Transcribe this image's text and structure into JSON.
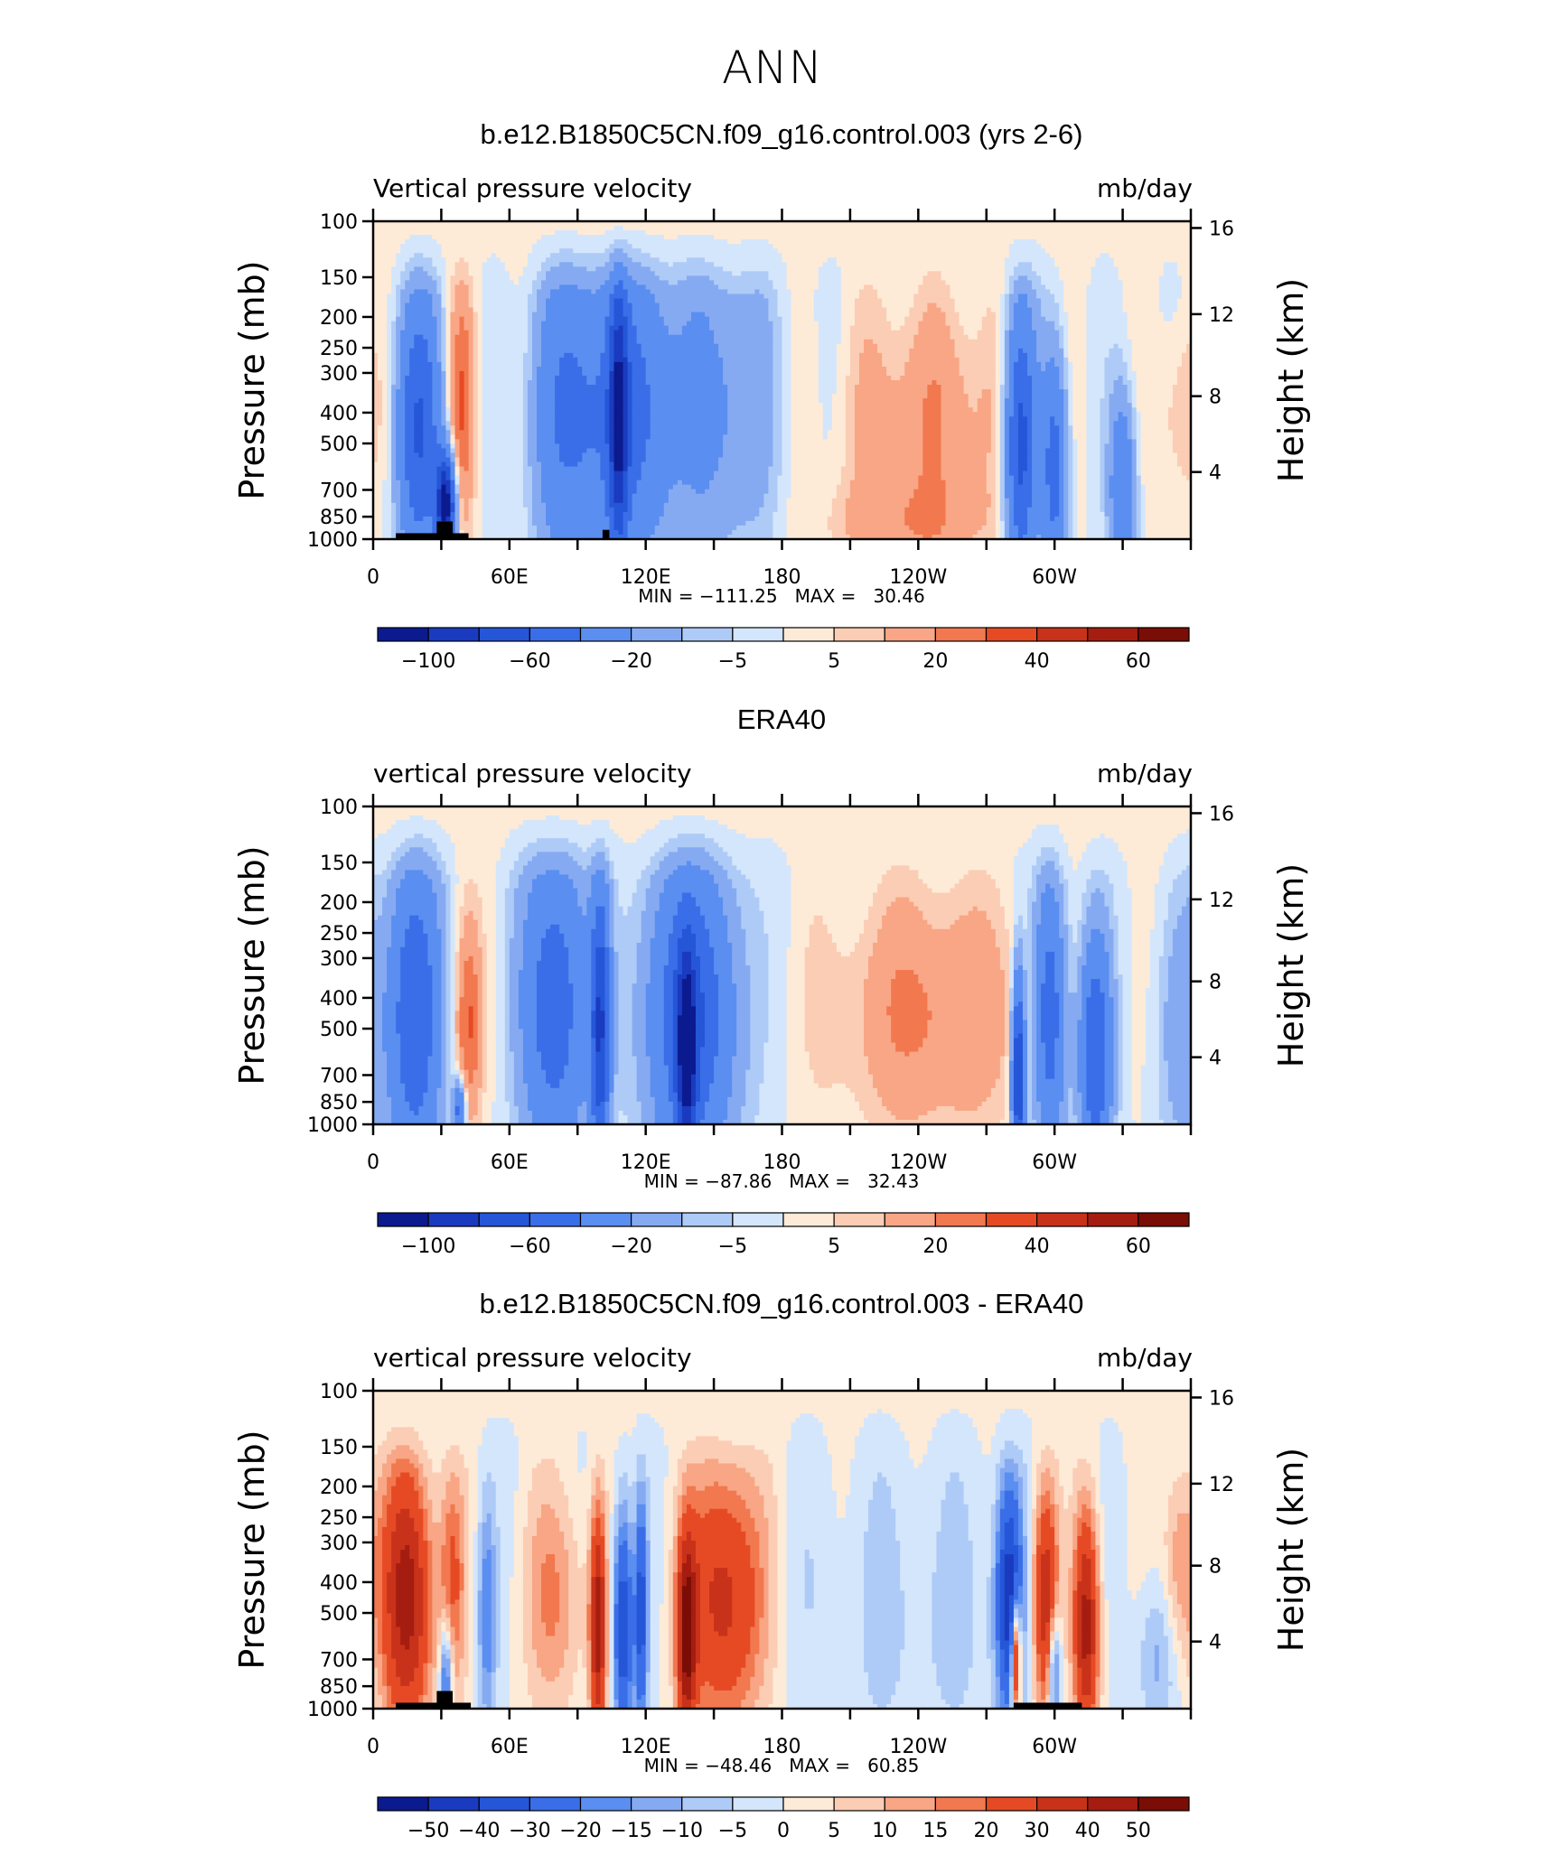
{
  "figure": {
    "title": "ANN"
  },
  "chart_data": [
    {
      "type": "heatmap",
      "title": "b.e12.B1850C5CN.f09_g16.control.003 (yrs 2-6)",
      "left_label": "Vertical pressure velocity",
      "right_label": "mb/day",
      "xlabel": "",
      "ylabel": "Pressure (mb)",
      "ylabel_right": "Height (km)",
      "x_ticks": [
        "0",
        "60E",
        "120E",
        "180",
        "120W",
        "60W"
      ],
      "x_tick_values": [
        0,
        60,
        120,
        180,
        240,
        300
      ],
      "xlim": [
        0,
        360
      ],
      "y_ticks": [
        "100",
        "150",
        "200",
        "250",
        "300",
        "400",
        "500",
        "700",
        "850",
        "1000"
      ],
      "y_tick_values": [
        100,
        150,
        200,
        250,
        300,
        400,
        500,
        700,
        850,
        1000
      ],
      "ylim": [
        1000,
        100
      ],
      "y_scale": "log",
      "y_right_ticks": [
        "16",
        "12",
        "8",
        "4"
      ],
      "min_max_text": "MIN = −111.25   MAX =   30.46",
      "colorbar": {
        "levels": [
          "−100",
          "−60",
          "−20",
          "−5",
          "5",
          "20",
          "40",
          "60"
        ],
        "colors": [
          "#0c1a8f",
          "#1a3bbf",
          "#2556d8",
          "#3a6ee8",
          "#5a8ef0",
          "#86aaf2",
          "#aecbf7",
          "#d4e6fb",
          "#fdebd8",
          "#fbcdb4",
          "#f8a685",
          "#f2784f",
          "#e64a24",
          "#c8321a",
          "#a51d10",
          "#7a0d05"
        ]
      }
    },
    {
      "type": "heatmap",
      "title": "ERA40",
      "left_label": "vertical pressure velocity",
      "right_label": "mb/day",
      "xlabel": "",
      "ylabel": "Pressure (mb)",
      "ylabel_right": "Height (km)",
      "x_ticks": [
        "0",
        "60E",
        "120E",
        "180",
        "120W",
        "60W"
      ],
      "x_tick_values": [
        0,
        60,
        120,
        180,
        240,
        300
      ],
      "xlim": [
        0,
        360
      ],
      "y_ticks": [
        "100",
        "150",
        "200",
        "250",
        "300",
        "400",
        "500",
        "700",
        "850",
        "1000"
      ],
      "y_tick_values": [
        100,
        150,
        200,
        250,
        300,
        400,
        500,
        700,
        850,
        1000
      ],
      "ylim": [
        1000,
        100
      ],
      "y_scale": "log",
      "y_right_ticks": [
        "16",
        "12",
        "8",
        "4"
      ],
      "min_max_text": "MIN = −87.86   MAX =   32.43",
      "colorbar": {
        "levels": [
          "−100",
          "−60",
          "−20",
          "−5",
          "5",
          "20",
          "40",
          "60"
        ],
        "colors": [
          "#0c1a8f",
          "#1a3bbf",
          "#2556d8",
          "#3a6ee8",
          "#5a8ef0",
          "#86aaf2",
          "#aecbf7",
          "#d4e6fb",
          "#fdebd8",
          "#fbcdb4",
          "#f8a685",
          "#f2784f",
          "#e64a24",
          "#c8321a",
          "#a51d10",
          "#7a0d05"
        ]
      }
    },
    {
      "type": "heatmap",
      "title": "b.e12.B1850C5CN.f09_g16.control.003 - ERA40",
      "left_label": "vertical pressure velocity",
      "right_label": "mb/day",
      "xlabel": "",
      "ylabel": "Pressure (mb)",
      "ylabel_right": "Height (km)",
      "x_ticks": [
        "0",
        "60E",
        "120E",
        "180",
        "120W",
        "60W"
      ],
      "x_tick_values": [
        0,
        60,
        120,
        180,
        240,
        300
      ],
      "xlim": [
        0,
        360
      ],
      "y_ticks": [
        "100",
        "150",
        "200",
        "250",
        "300",
        "400",
        "500",
        "700",
        "850",
        "1000"
      ],
      "y_tick_values": [
        100,
        150,
        200,
        250,
        300,
        400,
        500,
        700,
        850,
        1000
      ],
      "ylim": [
        1000,
        100
      ],
      "y_scale": "log",
      "y_right_ticks": [
        "16",
        "12",
        "8",
        "4"
      ],
      "min_max_text": "MIN = −48.46   MAX =   60.85",
      "colorbar": {
        "levels": [
          "−50",
          "−40",
          "−30",
          "−20",
          "−15",
          "−10",
          "−5",
          "0",
          "5",
          "10",
          "15",
          "20",
          "30",
          "40",
          "50"
        ],
        "colors": [
          "#0c1a8f",
          "#1a3bbf",
          "#2556d8",
          "#3a6ee8",
          "#5a8ef0",
          "#86aaf2",
          "#aecbf7",
          "#d4e6fb",
          "#fdebd8",
          "#fbcdb4",
          "#f8a685",
          "#f2784f",
          "#e64a24",
          "#c8321a",
          "#a51d10",
          "#7a0d05"
        ]
      }
    }
  ]
}
